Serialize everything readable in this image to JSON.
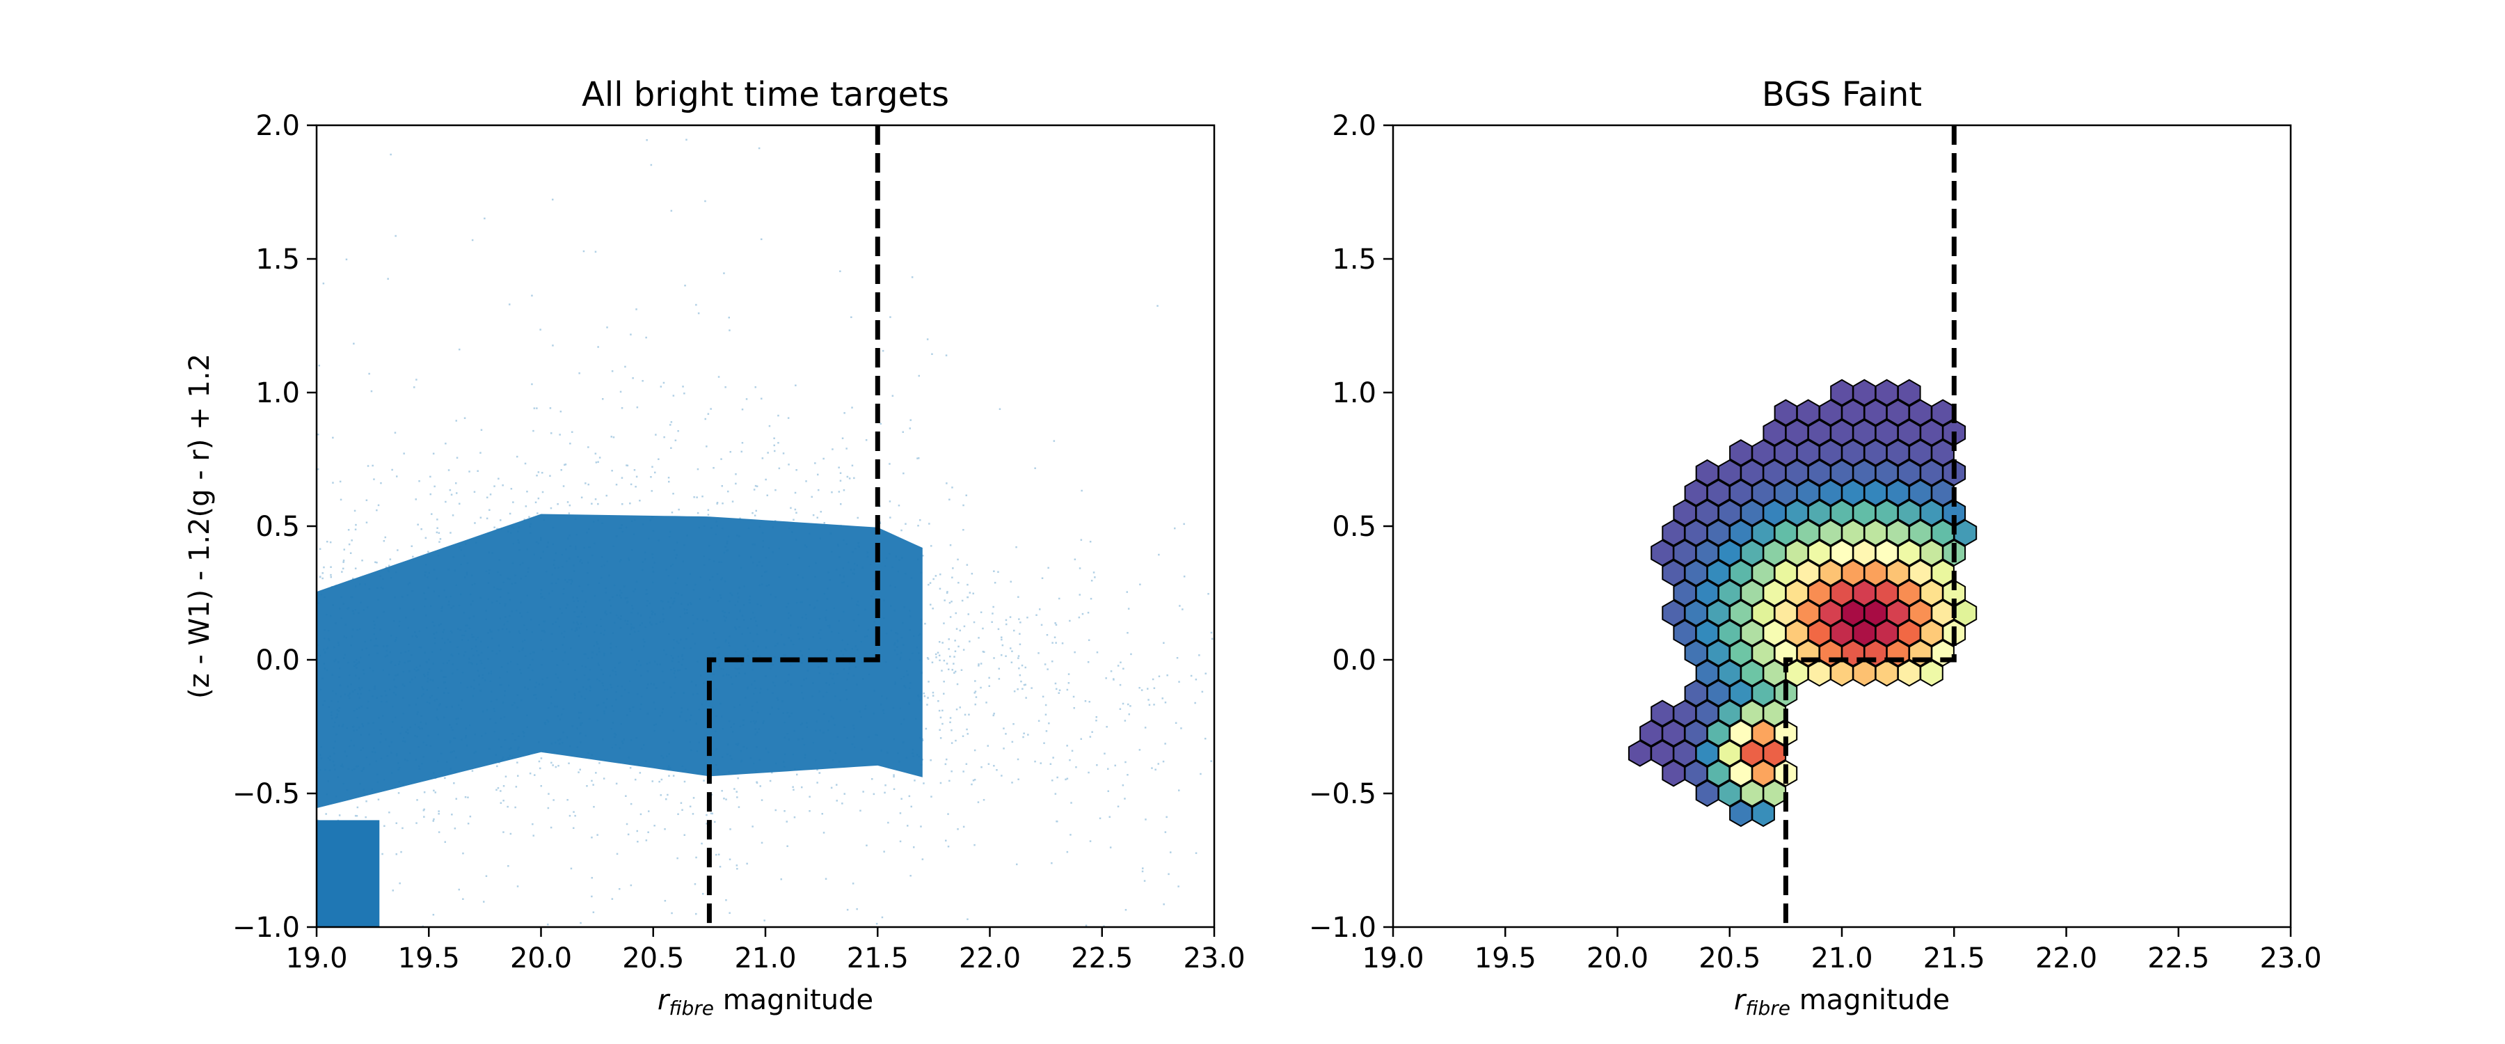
{
  "figure": {
    "background": "#ffffff"
  },
  "chart_data": [
    {
      "type": "scatter",
      "title": "All bright time targets",
      "xlabel_main": "r",
      "xlabel_sub": "fibre",
      "xlabel_rest": " magnitude",
      "ylabel": "(z - W1) - 1.2(g - r) + 1.2",
      "xlim": [
        19.0,
        23.0
      ],
      "ylim": [
        -1.0,
        2.0
      ],
      "xticks": [
        "19.0",
        "19.5",
        "20.0",
        "20.5",
        "21.0",
        "21.5",
        "22.0",
        "22.5",
        "23.0"
      ],
      "yticks": [
        "−1.0",
        "−0.5",
        "0.0",
        "0.5",
        "1.0",
        "1.5",
        "2.0"
      ],
      "point_color": "#1f77b4",
      "density_model": {
        "ridge": [
          {
            "x": 19.0,
            "y": -0.15,
            "spread": 0.3,
            "weight": 1.0
          },
          {
            "x": 20.0,
            "y": 0.1,
            "spread": 0.33,
            "weight": 1.0
          },
          {
            "x": 20.75,
            "y": 0.05,
            "spread": 0.36,
            "weight": 1.0
          },
          {
            "x": 21.5,
            "y": 0.05,
            "spread": 0.33,
            "weight": 0.75
          },
          {
            "x": 22.0,
            "y": -0.1,
            "spread": 0.3,
            "weight": 0.3
          },
          {
            "x": 23.0,
            "y": -0.2,
            "spread": 0.3,
            "weight": 0.05
          }
        ],
        "saturated_block": {
          "x": [
            19.0,
            19.28
          ],
          "y": [
            -1.0,
            -0.6
          ]
        }
      },
      "boundary": {
        "style": "dashed",
        "color": "#000000",
        "points": [
          [
            21.5,
            2.0
          ],
          [
            21.5,
            0.0
          ],
          [
            20.75,
            0.0
          ],
          [
            20.75,
            -1.0
          ]
        ]
      }
    },
    {
      "type": "heatmap",
      "subtype": "hexbin",
      "title": "BGS Faint",
      "xlabel_main": "r",
      "xlabel_sub": "fibre",
      "xlabel_rest": " magnitude",
      "ylabel": "",
      "xlim": [
        19.0,
        23.0
      ],
      "ylim": [
        -1.0,
        2.0
      ],
      "xticks": [
        "19.0",
        "19.5",
        "20.0",
        "20.5",
        "21.0",
        "21.5",
        "22.0",
        "22.5",
        "23.0"
      ],
      "yticks": [
        "−1.0",
        "−0.5",
        "0.0",
        "0.5",
        "1.0",
        "1.5",
        "2.0"
      ],
      "colormap": "Spectral_r",
      "colormap_stops": [
        "#5e4fa2",
        "#3288bd",
        "#66c2a5",
        "#abdda4",
        "#e6f598",
        "#ffffbf",
        "#fee08b",
        "#fdae61",
        "#f46d43",
        "#d53e4f",
        "#9e0142"
      ],
      "hex_edge_color": "#000000",
      "hex_step_x": 0.1,
      "hex_step_y": 0.075,
      "hex_rows": [
        {
          "y": 1.0,
          "x": [
            21.0,
            21.1,
            21.2,
            21.3
          ]
        },
        {
          "y": 0.925,
          "x": [
            20.75,
            20.85,
            20.95,
            21.05,
            21.15,
            21.25,
            21.35,
            21.45
          ]
        },
        {
          "y": 0.85,
          "x": [
            20.7,
            20.8,
            20.9,
            21.0,
            21.1,
            21.2,
            21.3,
            21.4,
            21.5
          ]
        },
        {
          "y": 0.775,
          "x": [
            20.55,
            20.65,
            20.75,
            20.85,
            20.95,
            21.05,
            21.15,
            21.25,
            21.35,
            21.45
          ]
        },
        {
          "y": 0.7,
          "x": [
            20.4,
            20.5,
            20.6,
            20.7,
            20.8,
            20.9,
            21.0,
            21.1,
            21.2,
            21.3,
            21.4,
            21.5
          ]
        },
        {
          "y": 0.625,
          "x": [
            20.35,
            20.45,
            20.55,
            20.65,
            20.75,
            20.85,
            20.95,
            21.05,
            21.15,
            21.25,
            21.35,
            21.45
          ]
        },
        {
          "y": 0.55,
          "x": [
            20.3,
            20.4,
            20.5,
            20.6,
            20.7,
            20.8,
            20.9,
            21.0,
            21.1,
            21.2,
            21.3,
            21.4,
            21.5
          ]
        },
        {
          "y": 0.475,
          "x": [
            20.25,
            20.35,
            20.45,
            20.55,
            20.65,
            20.75,
            20.85,
            20.95,
            21.05,
            21.15,
            21.25,
            21.35,
            21.45,
            21.55
          ]
        },
        {
          "y": 0.4,
          "x": [
            20.2,
            20.3,
            20.4,
            20.5,
            20.6,
            20.7,
            20.8,
            20.9,
            21.0,
            21.1,
            21.2,
            21.3,
            21.4,
            21.5
          ]
        },
        {
          "y": 0.325,
          "x": [
            20.25,
            20.35,
            20.45,
            20.55,
            20.65,
            20.75,
            20.85,
            20.95,
            21.05,
            21.15,
            21.25,
            21.35,
            21.45
          ]
        },
        {
          "y": 0.25,
          "x": [
            20.3,
            20.4,
            20.5,
            20.6,
            20.7,
            20.8,
            20.9,
            21.0,
            21.1,
            21.2,
            21.3,
            21.4,
            21.5
          ]
        },
        {
          "y": 0.175,
          "x": [
            20.25,
            20.35,
            20.45,
            20.55,
            20.65,
            20.75,
            20.85,
            20.95,
            21.05,
            21.15,
            21.25,
            21.35,
            21.45,
            21.55
          ]
        },
        {
          "y": 0.1,
          "x": [
            20.3,
            20.4,
            20.5,
            20.6,
            20.7,
            20.8,
            20.9,
            21.0,
            21.1,
            21.2,
            21.3,
            21.4,
            21.5
          ]
        },
        {
          "y": 0.025,
          "x": [
            20.35,
            20.45,
            20.55,
            20.65,
            20.75,
            20.85,
            20.95,
            21.05,
            21.15,
            21.25,
            21.35,
            21.45
          ]
        },
        {
          "y": -0.05,
          "x": [
            20.4,
            20.5,
            20.6,
            20.7,
            20.8,
            20.9,
            21.0,
            21.1,
            21.2,
            21.3,
            21.4
          ]
        },
        {
          "y": -0.125,
          "x": [
            20.35,
            20.45,
            20.55,
            20.65,
            20.75
          ]
        },
        {
          "y": -0.2,
          "x": [
            20.2,
            20.3,
            20.4,
            20.5,
            20.6,
            20.7
          ]
        },
        {
          "y": -0.275,
          "x": [
            20.15,
            20.25,
            20.35,
            20.45,
            20.55,
            20.65,
            20.75
          ]
        },
        {
          "y": -0.35,
          "x": [
            20.1,
            20.2,
            20.3,
            20.4,
            20.5,
            20.6,
            20.7
          ]
        },
        {
          "y": -0.425,
          "x": [
            20.25,
            20.35,
            20.45,
            20.55,
            20.65,
            20.75
          ]
        },
        {
          "y": -0.5,
          "x": [
            20.4,
            20.5,
            20.6,
            20.7
          ]
        },
        {
          "y": -0.575,
          "x": [
            20.55,
            20.65
          ]
        }
      ],
      "density_peaks": [
        {
          "x": 21.1,
          "y": 0.15,
          "sx": 0.33,
          "sy": 0.22,
          "amp": 1.0
        },
        {
          "x": 20.65,
          "y": -0.35,
          "sx": 0.12,
          "sy": 0.11,
          "amp": 0.9
        }
      ],
      "boundary": {
        "style": "dashed",
        "color": "#000000",
        "points": [
          [
            21.5,
            2.0
          ],
          [
            21.5,
            0.0
          ],
          [
            20.75,
            0.0
          ],
          [
            20.75,
            -1.0
          ]
        ]
      }
    }
  ]
}
